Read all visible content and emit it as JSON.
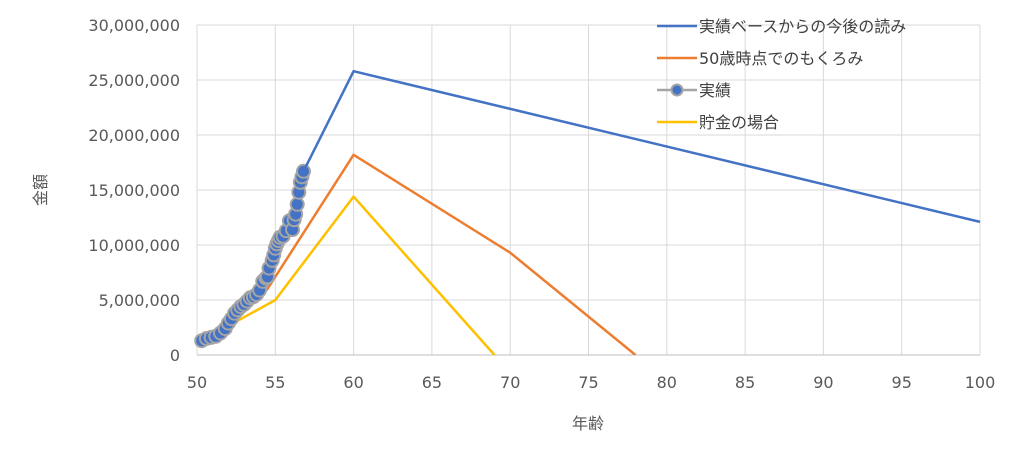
{
  "chart_data": {
    "type": "line",
    "xlabel": "年齢",
    "ylabel": "金額",
    "xlim": [
      50,
      100
    ],
    "ylim": [
      0,
      30000000
    ],
    "x_ticks": [
      50,
      55,
      60,
      65,
      70,
      75,
      80,
      85,
      90,
      95,
      100
    ],
    "y_ticks": [
      0,
      5000000,
      10000000,
      15000000,
      20000000,
      25000000,
      30000000
    ],
    "y_tick_labels": [
      "0",
      "5,000,000",
      "10,000,000",
      "15,000,000",
      "20,000,000",
      "25,000,000",
      "30,000,000"
    ],
    "grid": true,
    "legend_position": "top-right",
    "series": [
      {
        "name": "実績ベースからの今後の読み",
        "color": "#4472C4",
        "kind": "line",
        "x": [
          56.8,
          60,
          100
        ],
        "y": [
          16700000,
          25800000,
          12100000
        ]
      },
      {
        "name": "50歳時点でのもくろみ",
        "color": "#ED7D31",
        "kind": "line",
        "x": [
          50.3,
          54.5,
          60,
          70,
          78
        ],
        "y": [
          1300000,
          6000000,
          18200000,
          9300000,
          0
        ]
      },
      {
        "name": "実績",
        "color": "#A5A5A5",
        "marker_color": "#4472C4",
        "kind": "line_markers",
        "x": [
          50.3,
          50.6,
          50.9,
          51.2,
          51.5,
          51.8,
          52.0,
          52.2,
          52.4,
          52.6,
          52.8,
          53.0,
          53.2,
          53.4,
          53.6,
          53.8,
          54.0,
          54.2,
          54.4,
          54.5,
          54.6,
          54.8,
          54.9,
          55.0,
          55.1,
          55.2,
          55.3,
          55.5,
          55.7,
          55.9,
          56.1,
          56.2,
          56.3,
          56.4,
          56.5,
          56.6,
          56.7,
          56.8
        ],
        "y": [
          1300000,
          1500000,
          1600000,
          1700000,
          2000000,
          2400000,
          2900000,
          3300000,
          3800000,
          4100000,
          4400000,
          4600000,
          4900000,
          5200000,
          5300000,
          5500000,
          5900000,
          6700000,
          7000000,
          7100000,
          7900000,
          8600000,
          9100000,
          9700000,
          10100000,
          10400000,
          10700000,
          10800000,
          11300000,
          12200000,
          11400000,
          12300000,
          12800000,
          13700000,
          14800000,
          15700000,
          16200000,
          16700000
        ]
      },
      {
        "name": "貯金の場合",
        "color": "#FFC000",
        "kind": "line",
        "x": [
          50.3,
          55,
          60,
          69
        ],
        "y": [
          1300000,
          5000000,
          14400000,
          0
        ]
      }
    ]
  }
}
